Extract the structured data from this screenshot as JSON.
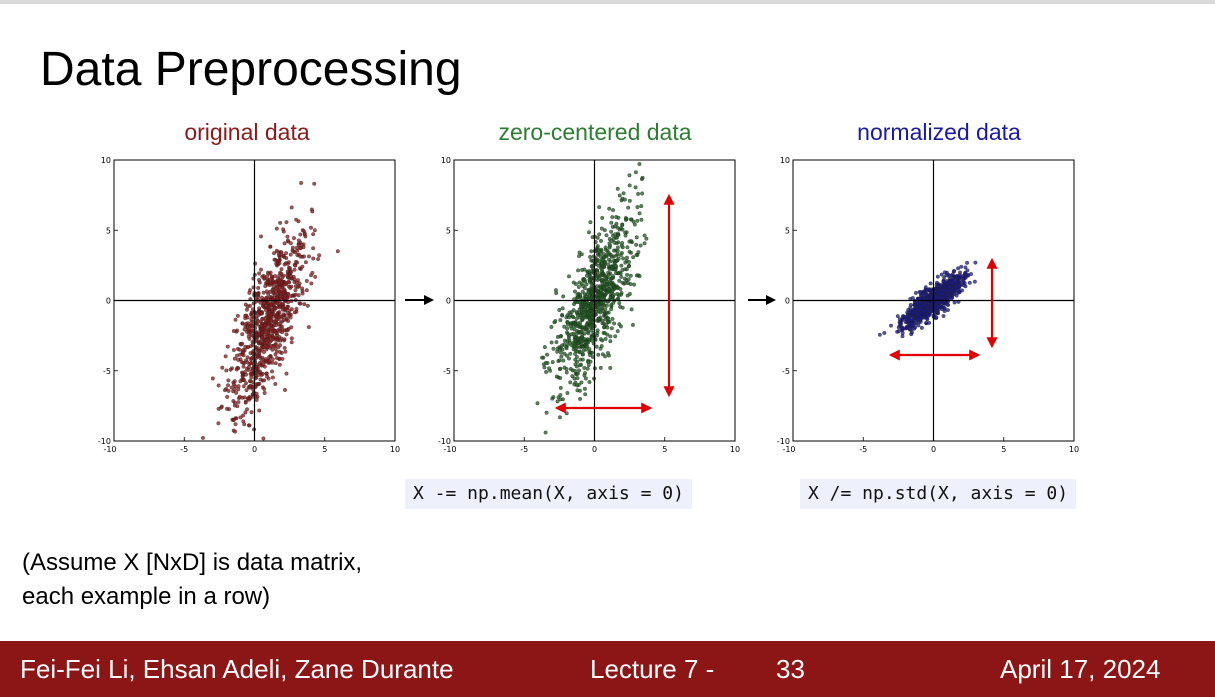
{
  "slide": {
    "title": "Data Preprocessing",
    "note_line1": "(Assume X [NxD] is data matrix,",
    "note_line2": "each example in a row)"
  },
  "panels": [
    {
      "title": "original data",
      "color": "#8b1a1a",
      "point_color": "#8b1a1a"
    },
    {
      "title": "zero-centered data",
      "color": "#2e7d32",
      "point_color": "#1e5b1e"
    },
    {
      "title": "normalized data",
      "color": "#1a1aa6",
      "point_color": "#1a1a8a"
    }
  ],
  "code": {
    "center": "X -= np.mean(X, axis = 0)",
    "normalize": "X /= np.std(X, axis = 0)"
  },
  "footer": {
    "authors": "Fei-Fei Li, Ehsan Adeli, Zane Durante",
    "lecture": "Lecture 7 -",
    "page": "33",
    "date": "April 17, 2024",
    "background": "#8c1515"
  },
  "chart_data": [
    {
      "type": "scatter",
      "title": "original data",
      "xlim": [
        -10,
        10
      ],
      "ylim": [
        -10,
        10
      ],
      "xticks": [
        "-10",
        "-5",
        "0",
        "5",
        "10"
      ],
      "yticks": [
        "10",
        "5",
        "0",
        "-5",
        "-10"
      ],
      "cloud": {
        "mean_x": 1.0,
        "mean_y": -1.5,
        "spread_major": 3.4,
        "spread_minor": 0.9,
        "angle_deg": 70
      },
      "grid": false
    },
    {
      "type": "scatter",
      "title": "zero-centered data",
      "xlim": [
        -10,
        10
      ],
      "ylim": [
        -10,
        10
      ],
      "xticks": [
        "-10",
        "-5",
        "0",
        "5",
        "10"
      ],
      "yticks": [
        "10",
        "5",
        "0",
        "-5",
        "-10"
      ],
      "cloud": {
        "mean_x": 0,
        "mean_y": 0,
        "spread_major": 3.4,
        "spread_minor": 0.9,
        "angle_deg": 70
      },
      "grid": false
    },
    {
      "type": "scatter",
      "title": "normalized data",
      "xlim": [
        -10,
        10
      ],
      "ylim": [
        -10,
        10
      ],
      "xticks": [
        "-10",
        "-5",
        "0",
        "5",
        "10"
      ],
      "yticks": [
        "10",
        "5",
        "0",
        "-5",
        "-10"
      ],
      "cloud": {
        "mean_x": 0,
        "mean_y": 0,
        "spread_major": 1.35,
        "spread_minor": 0.4,
        "angle_deg": 40
      },
      "grid": false
    }
  ]
}
